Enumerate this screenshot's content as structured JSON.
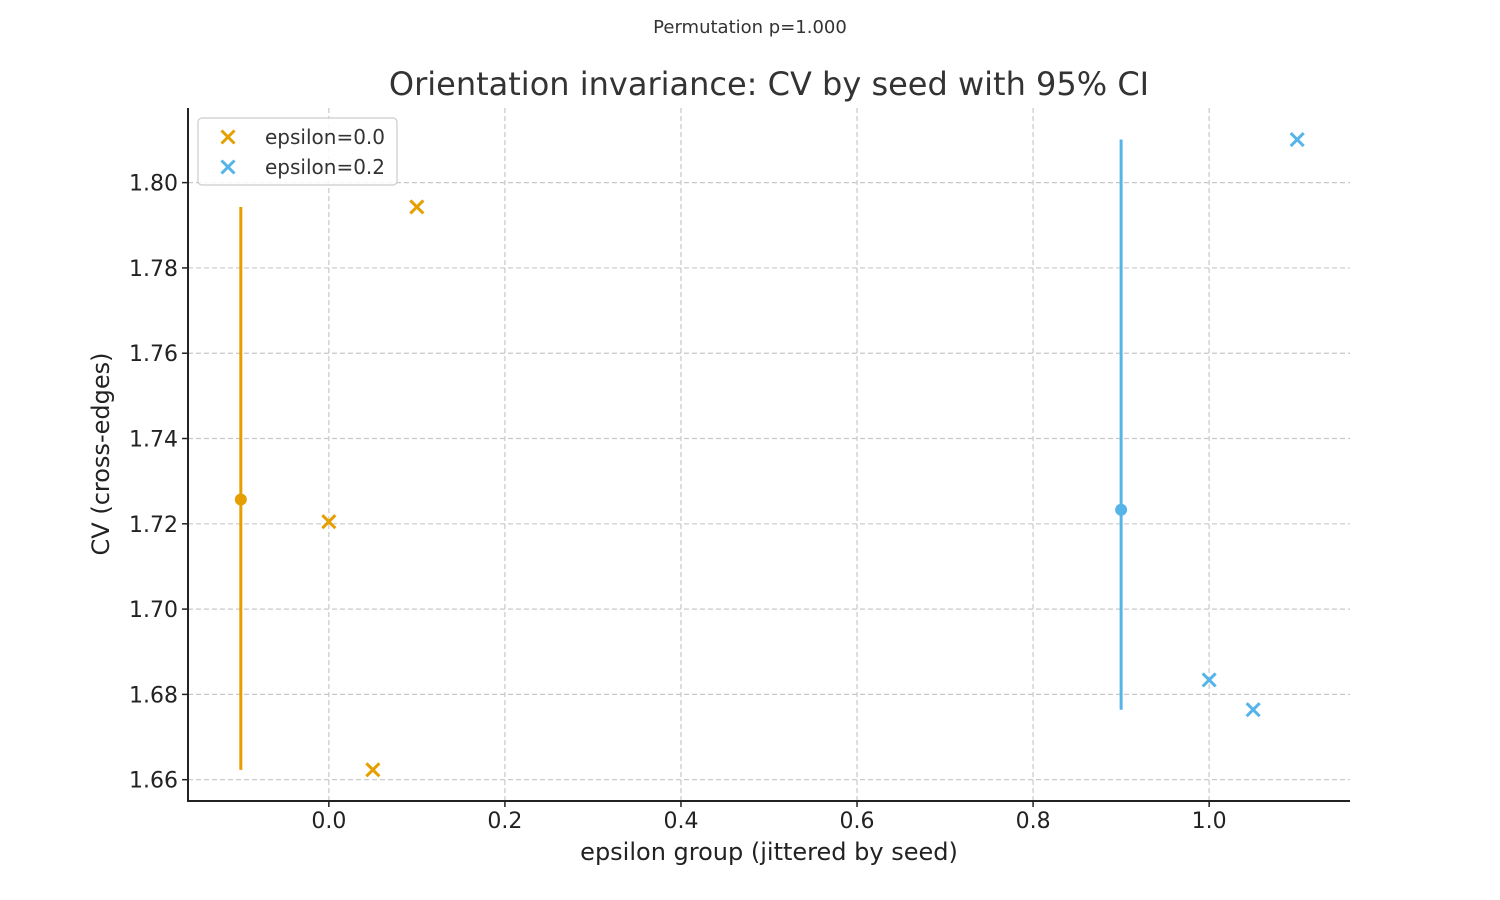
{
  "chart_data": {
    "type": "scatter",
    "suptitle": "Permutation p=1.000",
    "title": "Orientation invariance: CV by seed with 95% CI",
    "xlabel": "epsilon group (jittered by seed)",
    "ylabel": "CV (cross-edges)",
    "xlim": [
      -0.16,
      1.16
    ],
    "ylim": [
      1.655,
      1.8175
    ],
    "xticks": [
      0.0,
      0.2,
      0.4,
      0.6,
      0.8,
      1.0
    ],
    "xtick_labels": [
      "0.0",
      "0.2",
      "0.4",
      "0.6",
      "0.8",
      "1.0"
    ],
    "yticks": [
      1.66,
      1.68,
      1.7,
      1.72,
      1.74,
      1.76,
      1.78,
      1.8
    ],
    "ytick_labels": [
      "1.66",
      "1.68",
      "1.70",
      "1.72",
      "1.74",
      "1.76",
      "1.78",
      "1.80"
    ],
    "grid": true,
    "legend_position": "top-left",
    "series": [
      {
        "name": "epsilon=0.0",
        "color": "#E69F00",
        "marker": "x",
        "points": [
          {
            "x": 0.0,
            "y": 1.7205
          },
          {
            "x": 0.05,
            "y": 1.6623
          },
          {
            "x": 0.1,
            "y": 1.7943
          }
        ],
        "summary": {
          "x": -0.1,
          "mean": 1.7257,
          "ci_low": 1.6623,
          "ci_high": 1.7943
        }
      },
      {
        "name": "epsilon=0.2",
        "color": "#56B4E9",
        "marker": "x",
        "points": [
          {
            "x": 1.0,
            "y": 1.6834
          },
          {
            "x": 1.05,
            "y": 1.6764
          },
          {
            "x": 1.1,
            "y": 1.8101
          }
        ],
        "summary": {
          "x": 0.9,
          "mean": 1.7233,
          "ci_low": 1.6764,
          "ci_high": 1.8101
        }
      }
    ]
  }
}
